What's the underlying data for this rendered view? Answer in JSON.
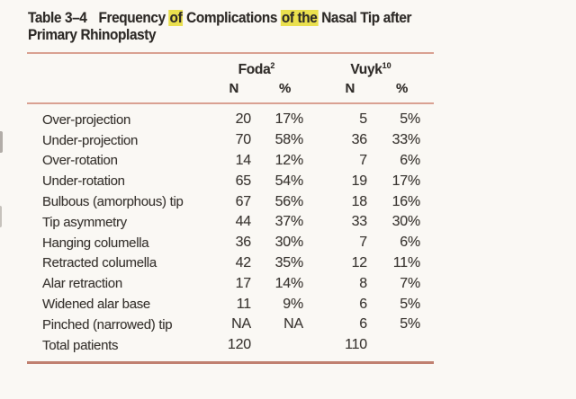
{
  "caption": {
    "label": "Table 3–4",
    "seg1": "Frequency ",
    "hl1": "of",
    "seg2": " Complications ",
    "hl2": "of the",
    "seg3": " Nasal Tip after",
    "line2": "Primary Rhinoplasty"
  },
  "colors": {
    "rule_top": "#d9a192",
    "rule_bottom": "#c08070",
    "highlight": "#eae04e",
    "background": "#faf8f4",
    "text": "#383430"
  },
  "table": {
    "groups": [
      {
        "name": "Foda",
        "sup": "2"
      },
      {
        "name": "Vuyk",
        "sup": "10"
      }
    ],
    "subheaders": {
      "n1": "N",
      "p1": "%",
      "n2": "N",
      "p2": "%"
    },
    "rows": [
      {
        "label": "Over-projection",
        "foda_n": "20",
        "foda_pct": "17%",
        "vuyk_n": "5",
        "vuyk_pct": "5%"
      },
      {
        "label": "Under-projection",
        "foda_n": "70",
        "foda_pct": "58%",
        "vuyk_n": "36",
        "vuyk_pct": "33%"
      },
      {
        "label": "Over-rotation",
        "foda_n": "14",
        "foda_pct": "12%",
        "vuyk_n": "7",
        "vuyk_pct": "6%"
      },
      {
        "label": "Under-rotation",
        "foda_n": "65",
        "foda_pct": "54%",
        "vuyk_n": "19",
        "vuyk_pct": "17%"
      },
      {
        "label": "Bulbous (amorphous) tip",
        "foda_n": "67",
        "foda_pct": "56%",
        "vuyk_n": "18",
        "vuyk_pct": "16%"
      },
      {
        "label": "Tip asymmetry",
        "foda_n": "44",
        "foda_pct": "37%",
        "vuyk_n": "33",
        "vuyk_pct": "30%"
      },
      {
        "label": "Hanging columella",
        "foda_n": "36",
        "foda_pct": "30%",
        "vuyk_n": "7",
        "vuyk_pct": "6%"
      },
      {
        "label": "Retracted columella",
        "foda_n": "42",
        "foda_pct": "35%",
        "vuyk_n": "12",
        "vuyk_pct": "11%"
      },
      {
        "label": "Alar retraction",
        "foda_n": "17",
        "foda_pct": "14%",
        "vuyk_n": "8",
        "vuyk_pct": "7%"
      },
      {
        "label": "Widened alar base",
        "foda_n": "11",
        "foda_pct": "9%",
        "vuyk_n": "6",
        "vuyk_pct": "5%"
      },
      {
        "label": "Pinched (narrowed) tip",
        "foda_n": "NA",
        "foda_pct": "NA",
        "vuyk_n": "6",
        "vuyk_pct": "5%"
      },
      {
        "label": "Total patients",
        "foda_n": "120",
        "foda_pct": "",
        "vuyk_n": "110",
        "vuyk_pct": ""
      }
    ]
  }
}
